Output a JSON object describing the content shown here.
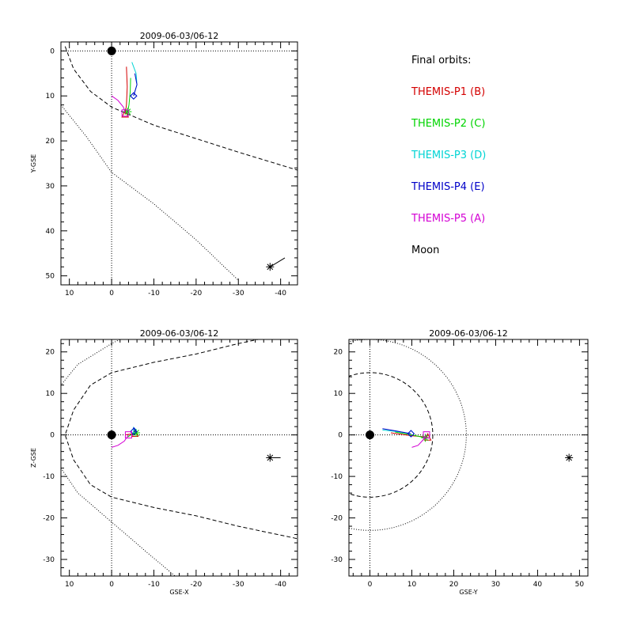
{
  "legend": {
    "title": "Final orbits:",
    "entries": [
      {
        "label": "THEMIS-P1 (B)",
        "color": "#d40000"
      },
      {
        "label": "THEMIS-P2 (C)",
        "color": "#00d400"
      },
      {
        "label": "THEMIS-P3 (D)",
        "color": "#00d4d4"
      },
      {
        "label": "THEMIS-P4 (E)",
        "color": "#0000c8"
      },
      {
        "label": "THEMIS-P5 (A)",
        "color": "#d400d4"
      },
      {
        "label": "Moon",
        "color": "#000000"
      }
    ]
  },
  "chart_data": [
    {
      "type": "line",
      "title": "2009-06-03/06-12",
      "xlabel": "",
      "ylabel": "Y-GSE",
      "xlim": [
        12,
        -44
      ],
      "ylim": [
        52,
        -2
      ],
      "x_ticks": [
        10,
        0,
        -10,
        -20,
        -30,
        -40
      ],
      "y_ticks": [
        0,
        10,
        20,
        30,
        40,
        50
      ],
      "grid": false,
      "earth": [
        0,
        0
      ],
      "crosshair": {
        "x": 0,
        "y": 0
      },
      "boundaries": [
        {
          "style": "dashed",
          "points": [
            [
              11,
              -1
            ],
            [
              9,
              4
            ],
            [
              5,
              9
            ],
            [
              0,
              12.5
            ],
            [
              -10,
              16.5
            ],
            [
              -20,
              19.5
            ],
            [
              -30,
              22.5
            ],
            [
              -44,
              26.5
            ]
          ]
        },
        {
          "style": "dotted",
          "points": [
            [
              12,
              12
            ],
            [
              6,
              19
            ],
            [
              0,
              27
            ],
            [
              -10,
              34
            ],
            [
              -20,
              42
            ],
            [
              -30,
              51
            ]
          ]
        }
      ],
      "series": [
        {
          "color": "#d40000",
          "marker": "triangle",
          "points": [
            [
              -3.5,
              3.5
            ],
            [
              -3.7,
              8
            ],
            [
              -3.5,
              12
            ],
            [
              -3.2,
              14
            ]
          ]
        },
        {
          "color": "#00d400",
          "marker": "asterisk",
          "points": [
            [
              -4.5,
              6
            ],
            [
              -4.4,
              9
            ],
            [
              -4.1,
              12
            ],
            [
              -3.8,
              13.5
            ]
          ]
        },
        {
          "color": "#00d4d4",
          "marker": "diamond",
          "points": [
            [
              -4.8,
              2.5
            ],
            [
              -5.8,
              5
            ],
            [
              -6,
              7.5
            ],
            [
              -5.2,
              10
            ]
          ]
        },
        {
          "color": "#0000c8",
          "marker": "diamond",
          "points": [
            [
              -5.5,
              5
            ],
            [
              -6,
              7.5
            ],
            [
              -5.2,
              10
            ]
          ]
        },
        {
          "color": "#d400d4",
          "marker": "square",
          "points": [
            [
              0,
              10
            ],
            [
              -1.5,
              11
            ],
            [
              -2.8,
              12.5
            ],
            [
              -3.2,
              13.8
            ]
          ]
        },
        {
          "color": "#000000",
          "marker": "asterisk",
          "points": [
            [
              -41,
              46
            ],
            [
              -37.5,
              48
            ]
          ]
        }
      ]
    },
    {
      "type": "line",
      "title": "2009-06-03/06-12",
      "xlabel": "GSE-X",
      "ylabel": "Z-GSE",
      "xlim": [
        12,
        -44
      ],
      "ylim": [
        -34,
        23
      ],
      "x_ticks": [
        10,
        0,
        -10,
        -20,
        -30,
        -40
      ],
      "y_ticks": [
        20,
        10,
        0,
        -10,
        -20,
        -30
      ],
      "grid": false,
      "earth": [
        0,
        0
      ],
      "crosshair": {
        "x": 0,
        "y": 0
      },
      "boundaries": [
        {
          "style": "dashed",
          "points": [
            [
              -44,
              25
            ],
            [
              -30,
              22
            ],
            [
              -20,
              19.5
            ],
            [
              -10,
              17.5
            ],
            [
              0,
              15
            ],
            [
              5,
              12
            ],
            [
              9,
              6
            ],
            [
              11,
              0
            ],
            [
              9,
              -6
            ],
            [
              5,
              -12
            ],
            [
              0,
              -15
            ],
            [
              -10,
              -17.5
            ],
            [
              -20,
              -19.5
            ],
            [
              -30,
              -22
            ],
            [
              -44,
              -25
            ]
          ]
        },
        {
          "style": "dotted",
          "points": [
            [
              -44,
              42
            ],
            [
              -30,
              37
            ],
            [
              -20,
              32
            ],
            [
              -10,
              27
            ],
            [
              0,
              22
            ],
            [
              8,
              17
            ],
            [
              12,
              12
            ]
          ]
        },
        {
          "style": "dotted",
          "points": [
            [
              12,
              -8
            ],
            [
              8,
              -14
            ],
            [
              0,
              -21
            ],
            [
              -8,
              -28
            ],
            [
              -15,
              -34
            ]
          ]
        }
      ],
      "series": [
        {
          "color": "#d40000",
          "marker": "triangle",
          "points": [
            [
              -3.2,
              0
            ],
            [
              -4.5,
              0.2
            ],
            [
              -5.5,
              0.4
            ]
          ]
        },
        {
          "color": "#00d400",
          "marker": "asterisk",
          "points": [
            [
              -3.8,
              -0.5
            ],
            [
              -4.8,
              0.2
            ],
            [
              -5.8,
              0.5
            ]
          ]
        },
        {
          "color": "#00d4d4",
          "marker": "diamond",
          "points": [
            [
              -4.8,
              0.3
            ],
            [
              -5.8,
              1.2
            ],
            [
              -5.2,
              1.8
            ],
            [
              -5.2,
              0.8
            ]
          ]
        },
        {
          "color": "#0000c8",
          "marker": "diamond",
          "points": [
            [
              -5.2,
              1.8
            ],
            [
              -5.8,
              1
            ],
            [
              -5.2,
              0.8
            ]
          ]
        },
        {
          "color": "#d400d4",
          "marker": "square",
          "points": [
            [
              0,
              -3
            ],
            [
              -1.5,
              -2.5
            ],
            [
              -3,
              -1.5
            ],
            [
              -4,
              0
            ]
          ]
        },
        {
          "color": "#000000",
          "marker": "asterisk",
          "points": [
            [
              -40,
              -5.5
            ],
            [
              -37.5,
              -5.5
            ]
          ]
        }
      ]
    },
    {
      "type": "line",
      "title": "2009-06-03/06-12",
      "xlabel": "GSE-Y",
      "ylabel": "",
      "xlim": [
        -5,
        52
      ],
      "ylim": [
        -34,
        23
      ],
      "x_ticks": [
        0,
        10,
        20,
        30,
        40,
        50
      ],
      "y_ticks": [
        20,
        10,
        0,
        -10,
        -20,
        -30
      ],
      "grid": false,
      "earth": [
        0,
        0
      ],
      "crosshair": {
        "x": 0,
        "y": 0
      },
      "boundaries": [
        {
          "style": "dashed",
          "circle": [
            0,
            0,
            15
          ]
        },
        {
          "style": "dotted",
          "circle": [
            0,
            0,
            23
          ]
        }
      ],
      "series": [
        {
          "color": "#d40000",
          "marker": "triangle",
          "points": [
            [
              5,
              0.5
            ],
            [
              10,
              -0.2
            ],
            [
              13.8,
              -0.5
            ]
          ]
        },
        {
          "color": "#00d400",
          "marker": "asterisk",
          "points": [
            [
              6,
              0.7
            ],
            [
              10,
              0
            ],
            [
              13.2,
              -0.7
            ]
          ]
        },
        {
          "color": "#00d4d4",
          "marker": "diamond",
          "points": [
            [
              3,
              1.2
            ],
            [
              6.5,
              0.8
            ],
            [
              9.8,
              0.3
            ]
          ]
        },
        {
          "color": "#0000c8",
          "marker": "diamond",
          "points": [
            [
              3,
              1.5
            ],
            [
              6.5,
              0.9
            ],
            [
              9.8,
              0.3
            ]
          ]
        },
        {
          "color": "#d400d4",
          "marker": "square",
          "points": [
            [
              10,
              -3
            ],
            [
              11.5,
              -2.5
            ],
            [
              12.7,
              -1.2
            ],
            [
              13.5,
              0
            ]
          ]
        },
        {
          "color": "#000000",
          "marker": "asterisk",
          "points": [
            [
              47.5,
              -5.5
            ]
          ]
        }
      ]
    }
  ]
}
